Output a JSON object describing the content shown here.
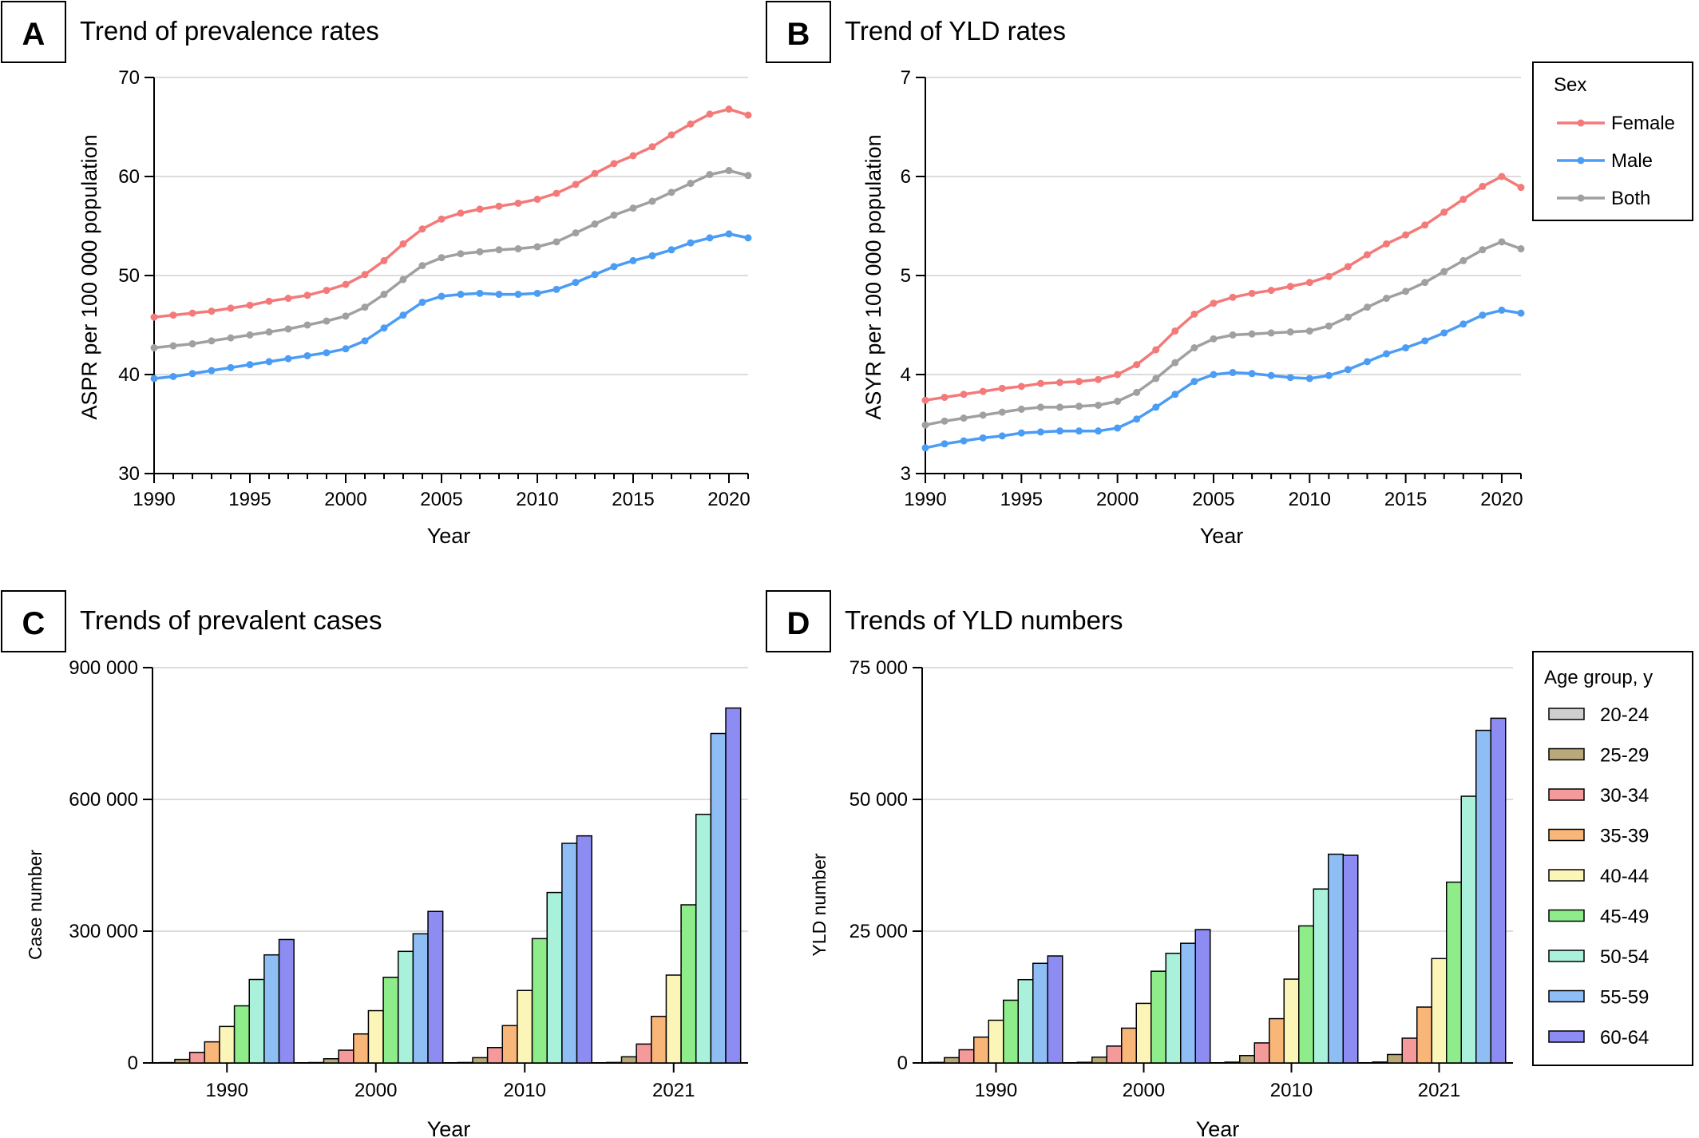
{
  "colors": {
    "female": "#f47a7a",
    "male": "#4b9cf5",
    "both": "#a0a0a0",
    "grid": "#d0d0d0",
    "age_groups": [
      "#cfcfcf",
      "#b9a878",
      "#f59a9a",
      "#f9b679",
      "#fbf6b8",
      "#8fec8a",
      "#a9f1da",
      "#8fbef5",
      "#8c8cf2"
    ]
  },
  "panels": [
    {
      "letter": "A",
      "title": "Trend of prevalence rates",
      "chart_data": {
        "type": "line",
        "xlabel": "Year",
        "ylabel": "ASPR per 100 000 population",
        "xlim": [
          1990,
          2021
        ],
        "ylim": [
          30,
          70
        ],
        "xticks": [
          "1990",
          "1995",
          "2000",
          "2005",
          "2010",
          "2015",
          "2020"
        ],
        "yticks": [
          "30",
          "40",
          "50",
          "60",
          "70"
        ],
        "grid": "horizontal",
        "x": [
          1990,
          1991,
          1992,
          1993,
          1994,
          1995,
          1996,
          1997,
          1998,
          1999,
          2000,
          2001,
          2002,
          2003,
          2004,
          2005,
          2006,
          2007,
          2008,
          2009,
          2010,
          2011,
          2012,
          2013,
          2014,
          2015,
          2016,
          2017,
          2018,
          2019,
          2020,
          2021
        ],
        "series": [
          {
            "name": "Female",
            "color_key": "female",
            "values": [
              45.8,
              46.0,
              46.2,
              46.4,
              46.7,
              47.0,
              47.4,
              47.7,
              48.0,
              48.5,
              49.1,
              50.1,
              51.5,
              53.2,
              54.7,
              55.7,
              56.3,
              56.7,
              57.0,
              57.3,
              57.7,
              58.3,
              59.2,
              60.3,
              61.3,
              62.1,
              63.0,
              64.2,
              65.3,
              66.3,
              66.8,
              66.2
            ]
          },
          {
            "name": "Male",
            "color_key": "male",
            "values": [
              39.6,
              39.8,
              40.1,
              40.4,
              40.7,
              41.0,
              41.3,
              41.6,
              41.9,
              42.2,
              42.6,
              43.4,
              44.7,
              46.0,
              47.3,
              47.9,
              48.1,
              48.2,
              48.1,
              48.1,
              48.2,
              48.6,
              49.3,
              50.1,
              50.9,
              51.5,
              52.0,
              52.6,
              53.3,
              53.8,
              54.2,
              53.8
            ]
          },
          {
            "name": "Both",
            "color_key": "both",
            "values": [
              42.7,
              42.9,
              43.1,
              43.4,
              43.7,
              44.0,
              44.3,
              44.6,
              45.0,
              45.4,
              45.9,
              46.8,
              48.1,
              49.6,
              51.0,
              51.8,
              52.2,
              52.4,
              52.6,
              52.7,
              52.9,
              53.4,
              54.3,
              55.2,
              56.1,
              56.8,
              57.5,
              58.4,
              59.3,
              60.2,
              60.6,
              60.1
            ]
          }
        ]
      }
    },
    {
      "letter": "B",
      "title": "Trend of YLD rates",
      "chart_data": {
        "type": "line",
        "xlabel": "Year",
        "ylabel": "ASYR per 100 000 population",
        "xlim": [
          1990,
          2021
        ],
        "ylim": [
          3,
          7
        ],
        "xticks": [
          "1990",
          "1995",
          "2000",
          "2005",
          "2010",
          "2015",
          "2020"
        ],
        "yticks": [
          "3",
          "4",
          "5",
          "6",
          "7"
        ],
        "grid": "horizontal",
        "x": [
          1990,
          1991,
          1992,
          1993,
          1994,
          1995,
          1996,
          1997,
          1998,
          1999,
          2000,
          2001,
          2002,
          2003,
          2004,
          2005,
          2006,
          2007,
          2008,
          2009,
          2010,
          2011,
          2012,
          2013,
          2014,
          2015,
          2016,
          2017,
          2018,
          2019,
          2020,
          2021
        ],
        "series": [
          {
            "name": "Female",
            "color_key": "female",
            "values": [
              3.74,
              3.77,
              3.8,
              3.83,
              3.86,
              3.88,
              3.91,
              3.92,
              3.93,
              3.95,
              4.0,
              4.1,
              4.25,
              4.44,
              4.61,
              4.72,
              4.78,
              4.82,
              4.85,
              4.89,
              4.93,
              4.99,
              5.09,
              5.21,
              5.32,
              5.41,
              5.51,
              5.64,
              5.77,
              5.9,
              6.0,
              5.89
            ]
          },
          {
            "name": "Male",
            "color_key": "male",
            "values": [
              3.26,
              3.3,
              3.33,
              3.36,
              3.38,
              3.41,
              3.42,
              3.43,
              3.43,
              3.43,
              3.46,
              3.55,
              3.67,
              3.8,
              3.93,
              4.0,
              4.02,
              4.01,
              3.99,
              3.97,
              3.96,
              3.99,
              4.05,
              4.13,
              4.21,
              4.27,
              4.34,
              4.42,
              4.51,
              4.6,
              4.65,
              4.62
            ]
          },
          {
            "name": "Both",
            "color_key": "both",
            "values": [
              3.49,
              3.53,
              3.56,
              3.59,
              3.62,
              3.65,
              3.67,
              3.67,
              3.68,
              3.69,
              3.73,
              3.82,
              3.96,
              4.12,
              4.27,
              4.36,
              4.4,
              4.41,
              4.42,
              4.43,
              4.44,
              4.49,
              4.58,
              4.68,
              4.77,
              4.84,
              4.93,
              5.04,
              5.15,
              5.26,
              5.34,
              5.27
            ]
          }
        ]
      }
    },
    {
      "letter": "C",
      "title": "Trends of prevalent cases",
      "chart_data": {
        "type": "bar",
        "xlabel": "Year",
        "ylabel": "Case number",
        "ylim": [
          0,
          900000
        ],
        "yticks": [
          "0",
          "300 000",
          "600 000",
          "900 000"
        ],
        "grid": "horizontal",
        "categories": [
          "1990",
          "2000",
          "2010",
          "2021"
        ],
        "series": [
          {
            "name": "20-24",
            "values": [
              800,
              900,
              1000,
              1100
            ]
          },
          {
            "name": "25-29",
            "values": [
              8000,
              9500,
              12000,
              14000
            ]
          },
          {
            "name": "30-34",
            "values": [
              24000,
              29000,
              35000,
              43000
            ]
          },
          {
            "name": "35-39",
            "values": [
              48000,
              66000,
              85000,
              106000
            ]
          },
          {
            "name": "40-44",
            "values": [
              83000,
              119000,
              165000,
              200000
            ]
          },
          {
            "name": "45-49",
            "values": [
              130000,
              195000,
              283000,
              360000
            ]
          },
          {
            "name": "50-54",
            "values": [
              190000,
              254000,
              388000,
              566000
            ]
          },
          {
            "name": "55-59",
            "values": [
              246000,
              294000,
              500000,
              750000
            ]
          },
          {
            "name": "60-64",
            "values": [
              281000,
              345000,
              517000,
              808000
            ]
          }
        ]
      }
    },
    {
      "letter": "D",
      "title": "Trends of YLD numbers",
      "chart_data": {
        "type": "bar",
        "xlabel": "Year",
        "ylabel": "YLD number",
        "ylim": [
          0,
          75000
        ],
        "yticks": [
          "0",
          "25 000",
          "50 000",
          "75 000"
        ],
        "grid": "horizontal",
        "categories": [
          "1990",
          "2000",
          "2010",
          "2021"
        ],
        "series": [
          {
            "name": "20-24",
            "values": [
              100,
              120,
              150,
              170
            ]
          },
          {
            "name": "25-29",
            "values": [
              1000,
              1100,
              1400,
              1600
            ]
          },
          {
            "name": "30-34",
            "values": [
              2500,
              3200,
              3800,
              4700
            ]
          },
          {
            "name": "35-39",
            "values": [
              4900,
              6600,
              8400,
              10600
            ]
          },
          {
            "name": "40-44",
            "values": [
              8100,
              11300,
              15900,
              19800
            ]
          },
          {
            "name": "45-49",
            "values": [
              11900,
              17400,
              26000,
              34300
            ]
          },
          {
            "name": "50-54",
            "values": [
              15800,
              20800,
              33000,
              50600
            ]
          },
          {
            "name": "55-59",
            "values": [
              18900,
              22700,
              39600,
              63100
            ]
          },
          {
            "name": "60-64",
            "values": [
              20300,
              25300,
              39400,
              65400
            ]
          }
        ]
      }
    }
  ],
  "legend_sex": {
    "title": "Sex",
    "items": [
      {
        "label": "Female",
        "color_key": "female"
      },
      {
        "label": "Male",
        "color_key": "male"
      },
      {
        "label": "Both",
        "color_key": "both"
      }
    ]
  },
  "legend_age": {
    "title": "Age group, y",
    "items": [
      "20-24",
      "25-29",
      "30-34",
      "35-39",
      "40-44",
      "45-49",
      "50-54",
      "55-59",
      "60-64"
    ]
  }
}
